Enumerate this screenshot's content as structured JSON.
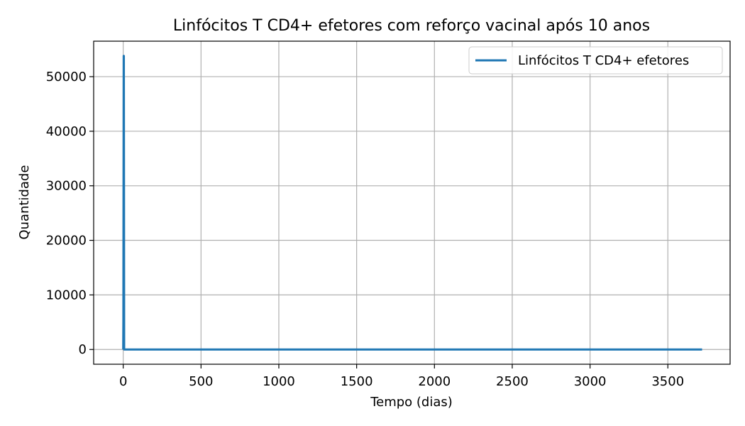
{
  "chart_data": {
    "type": "line",
    "title": "Linfócitos T CD4+ efetores com reforço vacinal após 10 anos",
    "xlabel": "Tempo (dias)",
    "ylabel": "Quantidade",
    "xlim": [
      -190,
      3900
    ],
    "ylim": [
      -2700,
      56500
    ],
    "xticks": [
      0,
      500,
      1000,
      1500,
      2000,
      2500,
      3000,
      3500
    ],
    "yticks": [
      0,
      10000,
      20000,
      30000,
      40000,
      50000
    ],
    "grid": true,
    "legend_position": "top-right",
    "series": [
      {
        "name": "Linfócitos T CD4+ efetores",
        "color": "#1f77b4",
        "x": [
          0,
          1,
          3,
          4,
          5,
          6,
          8,
          10,
          50,
          500,
          1000,
          2000,
          3000,
          3650,
          3720
        ],
        "y": [
          0,
          5000,
          53800,
          53800,
          30000,
          0,
          0,
          0,
          0,
          0,
          0,
          0,
          0,
          0,
          0
        ]
      }
    ]
  }
}
